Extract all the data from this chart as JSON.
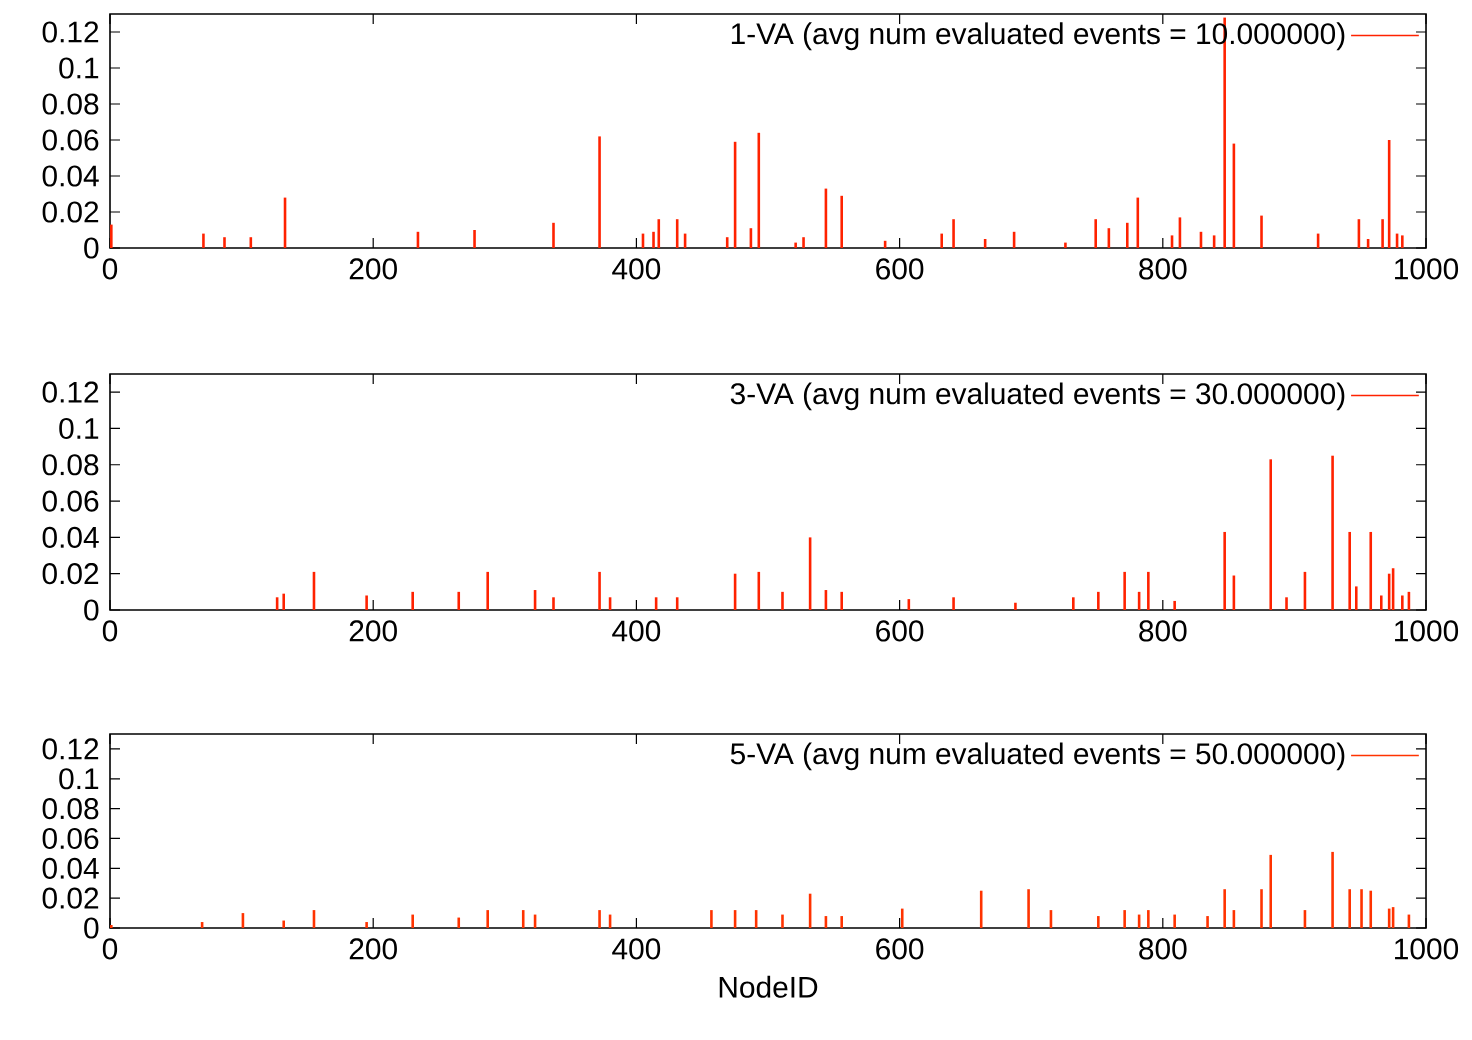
{
  "chart_data": [
    {
      "type": "bar",
      "xlim": [
        0,
        1000
      ],
      "ylim": [
        0,
        0.13
      ],
      "xticks": [
        0,
        200,
        400,
        600,
        800,
        1000
      ],
      "yticks": [
        0,
        0.02,
        0.04,
        0.06,
        0.08,
        0.1,
        0.12
      ],
      "legend": "top right",
      "series": [
        {
          "name": "1-VA (avg num evaluated events = 10.000000)",
          "color": "#ff2200",
          "x": [
            1,
            71,
            87,
            107,
            133,
            234,
            277,
            337,
            372,
            405,
            413,
            417,
            431,
            437,
            469,
            475,
            487,
            493,
            521,
            527,
            544,
            556,
            589,
            632,
            641,
            665,
            687,
            726,
            749,
            759,
            773,
            781,
            807,
            813,
            829,
            839,
            847,
            854,
            875,
            918,
            949,
            956,
            967,
            972,
            978,
            982
          ],
          "values": [
            0.013,
            0.008,
            0.006,
            0.006,
            0.028,
            0.009,
            0.01,
            0.014,
            0.062,
            0.008,
            0.009,
            0.016,
            0.016,
            0.008,
            0.006,
            0.059,
            0.011,
            0.064,
            0.003,
            0.006,
            0.033,
            0.029,
            0.004,
            0.008,
            0.016,
            0.005,
            0.009,
            0.003,
            0.016,
            0.011,
            0.014,
            0.028,
            0.007,
            0.017,
            0.009,
            0.007,
            0.128,
            0.058,
            0.018,
            0.008,
            0.016,
            0.005,
            0.016,
            0.06,
            0.008,
            0.007
          ]
        }
      ]
    },
    {
      "type": "bar",
      "xlim": [
        0,
        1000
      ],
      "ylim": [
        0,
        0.13
      ],
      "xticks": [
        0,
        200,
        400,
        600,
        800,
        1000
      ],
      "yticks": [
        0,
        0.02,
        0.04,
        0.06,
        0.08,
        0.1,
        0.12
      ],
      "legend": "top right",
      "series": [
        {
          "name": "3-VA (avg num evaluated events = 30.000000)",
          "color": "#ff2200",
          "x": [
            127,
            132,
            155,
            195,
            230,
            265,
            287,
            323,
            337,
            372,
            380,
            415,
            431,
            475,
            493,
            511,
            532,
            544,
            556,
            607,
            641,
            688,
            732,
            751,
            771,
            782,
            789,
            809,
            847,
            854,
            882,
            894,
            908,
            929,
            942,
            947,
            958,
            966,
            972,
            975,
            982,
            987
          ],
          "values": [
            0.007,
            0.009,
            0.021,
            0.008,
            0.01,
            0.01,
            0.021,
            0.011,
            0.007,
            0.021,
            0.007,
            0.007,
            0.007,
            0.02,
            0.021,
            0.01,
            0.04,
            0.011,
            0.01,
            0.006,
            0.007,
            0.004,
            0.007,
            0.01,
            0.021,
            0.01,
            0.021,
            0.005,
            0.043,
            0.019,
            0.083,
            0.007,
            0.021,
            0.085,
            0.043,
            0.013,
            0.043,
            0.008,
            0.02,
            0.023,
            0.008,
            0.01
          ]
        }
      ]
    },
    {
      "type": "bar",
      "xlim": [
        0,
        1000
      ],
      "ylim": [
        0,
        0.13
      ],
      "xticks": [
        0,
        200,
        400,
        600,
        800,
        1000
      ],
      "yticks": [
        0,
        0.02,
        0.04,
        0.06,
        0.08,
        0.1,
        0.12
      ],
      "legend": "top right",
      "xlabel": "NodeID",
      "series": [
        {
          "name": "5-VA (avg num evaluated events = 50.000000)",
          "color": "#ff3300",
          "x": [
            1,
            70,
            101,
            132,
            155,
            195,
            230,
            265,
            287,
            314,
            323,
            372,
            380,
            457,
            475,
            491,
            511,
            532,
            544,
            556,
            602,
            662,
            698,
            715,
            751,
            771,
            782,
            789,
            809,
            834,
            847,
            854,
            875,
            882,
            908,
            929,
            942,
            951,
            958,
            972,
            975,
            987
          ],
          "values": [
            0.002,
            0.004,
            0.01,
            0.005,
            0.012,
            0.004,
            0.009,
            0.007,
            0.012,
            0.012,
            0.009,
            0.012,
            0.009,
            0.012,
            0.012,
            0.012,
            0.009,
            0.023,
            0.008,
            0.008,
            0.013,
            0.025,
            0.026,
            0.012,
            0.008,
            0.012,
            0.009,
            0.012,
            0.009,
            0.008,
            0.026,
            0.012,
            0.026,
            0.049,
            0.012,
            0.051,
            0.026,
            0.026,
            0.025,
            0.013,
            0.014,
            0.009
          ]
        }
      ]
    }
  ]
}
